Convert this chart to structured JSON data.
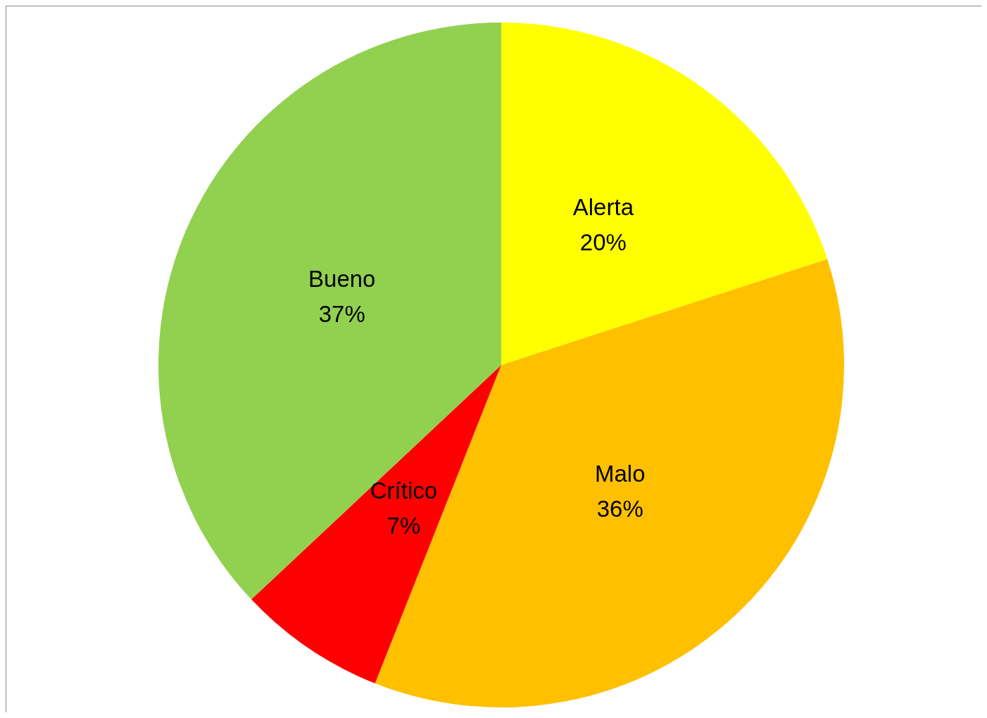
{
  "chart_data": {
    "type": "pie",
    "categories": [
      "Alerta",
      "Malo",
      "Crítico",
      "Bueno"
    ],
    "values": [
      20,
      36,
      7,
      37
    ],
    "value_labels": [
      "20%",
      "36%",
      "7%",
      "37%"
    ],
    "colors": [
      "#ffff00",
      "#ffc000",
      "#ff0000",
      "#92d050"
    ],
    "legend": false
  }
}
